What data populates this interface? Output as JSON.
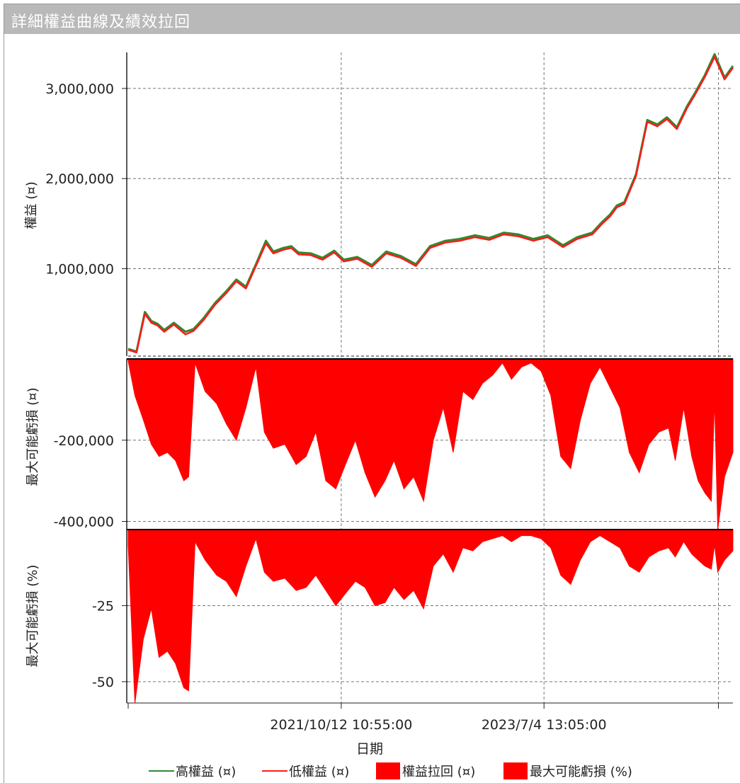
{
  "window": {
    "title": "詳細權益曲線及績效拉回"
  },
  "colors": {
    "high": "#2e8b2e",
    "low": "#ff1a1a",
    "fill": "#ff0000",
    "grid": "#777777",
    "titlebar": "#b9b9b9"
  },
  "chart_data": [
    {
      "type": "line",
      "panel": "equity",
      "ylabel": "權益 (¤)",
      "xlim": [
        "2019-12-20",
        "2025-02-10"
      ],
      "ylim": [
        30000,
        3400000
      ],
      "yticks": [
        1000000,
        2000000,
        3000000
      ],
      "ytick_labels": [
        "1,000,000",
        "2,000,000",
        "3,000,000"
      ],
      "grid": true,
      "series": [
        {
          "name": "高權益 (¤)",
          "color": "#2e8b2e",
          "x": [
            "2019-12-20",
            "2020-01-15",
            "2020-02-10",
            "2020-03-01",
            "2020-03-20",
            "2020-04-10",
            "2020-05-10",
            "2020-06-15",
            "2020-07-10",
            "2020-08-10",
            "2020-09-15",
            "2020-10-20",
            "2020-11-20",
            "2020-12-20",
            "2021-01-20",
            "2021-02-20",
            "2021-03-15",
            "2021-04-15",
            "2021-05-10",
            "2021-06-01",
            "2021-07-10",
            "2021-08-15",
            "2021-09-20",
            "2021-10-20",
            "2021-12-01",
            "2022-01-15",
            "2022-03-01",
            "2022-04-15",
            "2022-06-01",
            "2022-07-15",
            "2022-09-01",
            "2022-10-15",
            "2022-12-01",
            "2023-01-15",
            "2023-03-01",
            "2023-04-15",
            "2023-06-01",
            "2023-07-15",
            "2023-09-01",
            "2023-10-15",
            "2023-12-01",
            "2024-01-01",
            "2024-01-25",
            "2024-02-15",
            "2024-03-10",
            "2024-04-15",
            "2024-05-20",
            "2024-06-20",
            "2024-07-20",
            "2024-08-20",
            "2024-09-20",
            "2024-10-15",
            "2024-11-15",
            "2024-12-15",
            "2025-01-15",
            "2025-02-10"
          ],
          "y": [
            110000,
            80000,
            520000,
            420000,
            390000,
            320000,
            400000,
            300000,
            330000,
            450000,
            620000,
            750000,
            880000,
            800000,
            1050000,
            1310000,
            1190000,
            1230000,
            1250000,
            1180000,
            1170000,
            1120000,
            1200000,
            1100000,
            1130000,
            1040000,
            1190000,
            1140000,
            1050000,
            1250000,
            1310000,
            1330000,
            1370000,
            1340000,
            1400000,
            1380000,
            1330000,
            1370000,
            1260000,
            1350000,
            1400000,
            1520000,
            1600000,
            1700000,
            1740000,
            2050000,
            2650000,
            2600000,
            2680000,
            2570000,
            2800000,
            2950000,
            3150000,
            3380000,
            3120000,
            3250000
          ]
        },
        {
          "name": "低權益 (¤)",
          "color": "#ff1a1a",
          "x": [
            "2019-12-20",
            "2020-01-15",
            "2020-02-10",
            "2020-03-01",
            "2020-03-20",
            "2020-04-10",
            "2020-05-10",
            "2020-06-15",
            "2020-07-10",
            "2020-08-10",
            "2020-09-15",
            "2020-10-20",
            "2020-11-20",
            "2020-12-20",
            "2021-01-20",
            "2021-02-20",
            "2021-03-15",
            "2021-04-15",
            "2021-05-10",
            "2021-06-01",
            "2021-07-10",
            "2021-08-15",
            "2021-09-20",
            "2021-10-20",
            "2021-12-01",
            "2022-01-15",
            "2022-03-01",
            "2022-04-15",
            "2022-06-01",
            "2022-07-15",
            "2022-09-01",
            "2022-10-15",
            "2022-12-01",
            "2023-01-15",
            "2023-03-01",
            "2023-04-15",
            "2023-06-01",
            "2023-07-15",
            "2023-09-01",
            "2023-10-15",
            "2023-12-01",
            "2024-01-01",
            "2024-01-25",
            "2024-02-15",
            "2024-03-10",
            "2024-04-15",
            "2024-05-20",
            "2024-06-20",
            "2024-07-20",
            "2024-08-20",
            "2024-09-20",
            "2024-10-15",
            "2024-11-15",
            "2024-12-15",
            "2025-01-15",
            "2025-02-10"
          ],
          "y": [
            100000,
            70000,
            500000,
            400000,
            370000,
            300000,
            380000,
            270000,
            310000,
            430000,
            600000,
            730000,
            860000,
            780000,
            1030000,
            1280000,
            1170000,
            1210000,
            1230000,
            1160000,
            1150000,
            1100000,
            1180000,
            1080000,
            1110000,
            1020000,
            1170000,
            1120000,
            1030000,
            1230000,
            1290000,
            1310000,
            1350000,
            1320000,
            1380000,
            1360000,
            1310000,
            1350000,
            1240000,
            1330000,
            1380000,
            1500000,
            1580000,
            1680000,
            1720000,
            2030000,
            2630000,
            2580000,
            2660000,
            2550000,
            2780000,
            2930000,
            3130000,
            3350000,
            3100000,
            3230000
          ]
        }
      ]
    },
    {
      "type": "area",
      "panel": "drawdown-amount",
      "ylabel": "最大可能虧損 (¤)",
      "ylim": [
        -420000,
        0
      ],
      "yticks": [
        -200000,
        -400000
      ],
      "ytick_labels": [
        "-200,000",
        "-400,000"
      ],
      "grid": true,
      "series": [
        {
          "name": "權益拉回 (¤)",
          "color": "#ff0000",
          "x": [
            "2019-12-20",
            "2020-01-10",
            "2020-02-05",
            "2020-03-01",
            "2020-03-25",
            "2020-04-20",
            "2020-05-15",
            "2020-06-10",
            "2020-06-25",
            "2020-07-15",
            "2020-08-15",
            "2020-09-20",
            "2020-10-20",
            "2020-11-20",
            "2020-12-20",
            "2021-01-20",
            "2021-02-15",
            "2021-03-15",
            "2021-04-20",
            "2021-05-25",
            "2021-06-25",
            "2021-07-25",
            "2021-08-25",
            "2021-09-25",
            "2021-10-25",
            "2021-11-25",
            "2021-12-25",
            "2022-01-25",
            "2022-02-25",
            "2022-03-25",
            "2022-04-25",
            "2022-05-25",
            "2022-06-25",
            "2022-07-25",
            "2022-08-25",
            "2022-09-25",
            "2022-10-25",
            "2022-11-25",
            "2022-12-25",
            "2023-01-25",
            "2023-02-25",
            "2023-03-25",
            "2023-04-25",
            "2023-05-25",
            "2023-06-25",
            "2023-07-25",
            "2023-08-25",
            "2023-09-25",
            "2023-10-25",
            "2023-11-25",
            "2023-12-25",
            "2024-01-25",
            "2024-02-25",
            "2024-03-25",
            "2024-04-25",
            "2024-05-25",
            "2024-06-25",
            "2024-07-25",
            "2024-08-15",
            "2024-09-10",
            "2024-10-05",
            "2024-10-25",
            "2024-11-15",
            "2024-12-05",
            "2024-12-15",
            "2024-12-25",
            "2025-01-15",
            "2025-02-10"
          ],
          "y": [
            -5000,
            -90000,
            -150000,
            -210000,
            -240000,
            -230000,
            -250000,
            -300000,
            -290000,
            -10000,
            -80000,
            -110000,
            -160000,
            -200000,
            -120000,
            -20000,
            -180000,
            -220000,
            -210000,
            -260000,
            -240000,
            -180000,
            -300000,
            -320000,
            -260000,
            -200000,
            -280000,
            -340000,
            -300000,
            -250000,
            -320000,
            -290000,
            -350000,
            -200000,
            -120000,
            -230000,
            -80000,
            -100000,
            -60000,
            -40000,
            -10000,
            -50000,
            -20000,
            -10000,
            -30000,
            -90000,
            -240000,
            -270000,
            -150000,
            -60000,
            -20000,
            -70000,
            -120000,
            -230000,
            -280000,
            -210000,
            -180000,
            -170000,
            -250000,
            -120000,
            -240000,
            -300000,
            -330000,
            -350000,
            -100000,
            -420000,
            -290000,
            -230000
          ]
        }
      ]
    },
    {
      "type": "area",
      "panel": "drawdown-percent",
      "ylabel": "最大可能虧損 (%)",
      "ylim": [
        -57,
        0
      ],
      "yticks": [
        -25,
        -50
      ],
      "ytick_labels": [
        "-25",
        "-50"
      ],
      "grid": true,
      "series": [
        {
          "name": "最大可能虧損 (%)",
          "color": "#ff0000",
          "x": [
            "2019-12-20",
            "2020-01-10",
            "2020-02-05",
            "2020-03-01",
            "2020-03-25",
            "2020-04-20",
            "2020-05-15",
            "2020-06-10",
            "2020-06-25",
            "2020-07-15",
            "2020-08-15",
            "2020-09-20",
            "2020-10-20",
            "2020-11-20",
            "2020-12-20",
            "2021-01-20",
            "2021-02-15",
            "2021-03-15",
            "2021-04-20",
            "2021-05-25",
            "2021-06-25",
            "2021-07-25",
            "2021-08-25",
            "2021-09-25",
            "2021-10-25",
            "2021-11-25",
            "2021-12-25",
            "2022-01-25",
            "2022-02-25",
            "2022-03-25",
            "2022-04-25",
            "2022-05-25",
            "2022-06-25",
            "2022-07-25",
            "2022-08-25",
            "2022-09-25",
            "2022-10-25",
            "2022-11-25",
            "2022-12-25",
            "2023-01-25",
            "2023-02-25",
            "2023-03-25",
            "2023-04-25",
            "2023-05-25",
            "2023-06-25",
            "2023-07-25",
            "2023-08-25",
            "2023-09-25",
            "2023-10-25",
            "2023-11-25",
            "2023-12-25",
            "2024-01-25",
            "2024-02-25",
            "2024-03-25",
            "2024-04-25",
            "2024-05-25",
            "2024-06-25",
            "2024-07-25",
            "2024-08-15",
            "2024-09-10",
            "2024-10-05",
            "2024-10-25",
            "2024-11-15",
            "2024-12-05",
            "2024-12-15",
            "2024-12-25",
            "2025-01-15",
            "2025-02-10"
          ],
          "y": [
            -5,
            -57,
            -36,
            -26,
            -42,
            -40,
            -44,
            -52,
            -53,
            -4,
            -10,
            -15,
            -17,
            -22,
            -12,
            -3,
            -14,
            -17,
            -16,
            -20,
            -19,
            -15,
            -20,
            -25,
            -21,
            -17,
            -19,
            -25,
            -24,
            -19,
            -23,
            -20,
            -26,
            -12,
            -8,
            -14,
            -6,
            -7,
            -4,
            -3,
            -2,
            -4,
            -2,
            -2,
            -3,
            -6,
            -15,
            -18,
            -10,
            -4,
            -2,
            -4,
            -6,
            -12,
            -14,
            -9,
            -7,
            -6,
            -9,
            -4,
            -8,
            -10,
            -12,
            -13,
            -5,
            -14,
            -10,
            -7
          ]
        }
      ]
    }
  ],
  "xaxis": {
    "label": "日期",
    "ticks": [
      {
        "x": "2019-12-20",
        "label": ""
      },
      {
        "x": "2021-10-12",
        "label": "2021/10/12 10:55:00"
      },
      {
        "x": "2023-07-04",
        "label": "2023/7/4 13:05:00"
      },
      {
        "x": "2024-12-27",
        "label": ""
      }
    ]
  },
  "legend": {
    "placement": "bottom",
    "items": [
      {
        "label": "高權益 (¤)",
        "marker": "line",
        "color": "#2e8b2e"
      },
      {
        "label": "低權益 (¤)",
        "marker": "line",
        "color": "#ff1a1a"
      },
      {
        "label": "權益拉回 (¤)",
        "marker": "box",
        "color": "#ff0000"
      },
      {
        "label": "最大可能虧損 (%)",
        "marker": "box",
        "color": "#ff0000"
      }
    ]
  }
}
